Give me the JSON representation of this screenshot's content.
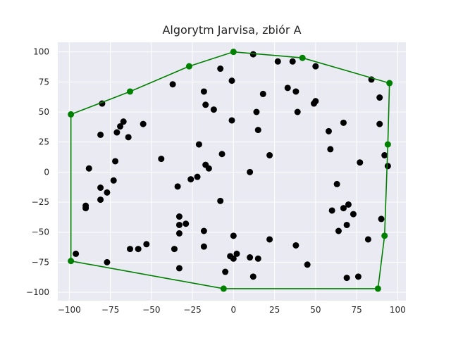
{
  "chart_data": {
    "type": "scatter",
    "title": "Algorytm Jarvisa, zbiór A",
    "xlabel": "",
    "ylabel": "",
    "xlim": [
      -107,
      105
    ],
    "ylim": [
      -107,
      108
    ],
    "x_ticks": [
      -100,
      -75,
      -50,
      -25,
      0,
      25,
      50,
      75,
      100
    ],
    "y_ticks": [
      -100,
      -75,
      -50,
      -25,
      0,
      25,
      50,
      75,
      100
    ],
    "x_tick_labels": [
      "−100",
      "−75",
      "−50",
      "−25",
      "0",
      "25",
      "50",
      "75",
      "100"
    ],
    "y_tick_labels": [
      "−100",
      "−75",
      "−50",
      "−25",
      "0",
      "25",
      "50",
      "75",
      "100"
    ],
    "grid": true,
    "background_color": "#eaeaf2",
    "point_color": "#000000",
    "hull_color": "#008000",
    "points": [
      [
        -96,
        -68
      ],
      [
        -90,
        -28
      ],
      [
        -90,
        -30
      ],
      [
        -88,
        3
      ],
      [
        -80,
        57
      ],
      [
        -81,
        31
      ],
      [
        -81,
        -13
      ],
      [
        -81,
        -23
      ],
      [
        -77,
        -75
      ],
      [
        -77,
        -17
      ],
      [
        -73,
        -7
      ],
      [
        -72,
        9
      ],
      [
        -71,
        33
      ],
      [
        -69,
        38
      ],
      [
        -67,
        42
      ],
      [
        -64,
        29
      ],
      [
        -55,
        40
      ],
      [
        -63,
        -64
      ],
      [
        -58,
        -64
      ],
      [
        -53,
        -60
      ],
      [
        -44,
        11
      ],
      [
        -37,
        73
      ],
      [
        -36,
        -64
      ],
      [
        -34,
        -12
      ],
      [
        -33,
        -37
      ],
      [
        -33,
        -44
      ],
      [
        -33,
        -51
      ],
      [
        -33,
        -80
      ],
      [
        -29,
        -43
      ],
      [
        -26,
        -6
      ],
      [
        -22,
        -4
      ],
      [
        -21,
        23
      ],
      [
        -18,
        67
      ],
      [
        -17,
        56
      ],
      [
        -17,
        6
      ],
      [
        -15,
        3
      ],
      [
        -12,
        52
      ],
      [
        -18,
        -49
      ],
      [
        -18,
        -62
      ],
      [
        -8,
        86
      ],
      [
        -7,
        15
      ],
      [
        -8,
        -24
      ],
      [
        -5,
        -83
      ],
      [
        -1,
        76
      ],
      [
        -1,
        43
      ],
      [
        -2,
        -70
      ],
      [
        0,
        -72
      ],
      [
        0,
        -53
      ],
      [
        2,
        -68
      ],
      [
        10,
        0
      ],
      [
        10,
        -71
      ],
      [
        12,
        98
      ],
      [
        12,
        -87
      ],
      [
        14,
        50
      ],
      [
        15,
        35
      ],
      [
        15,
        -72
      ],
      [
        18,
        65
      ],
      [
        22,
        14
      ],
      [
        22,
        -56
      ],
      [
        27,
        92
      ],
      [
        33,
        70
      ],
      [
        36,
        92
      ],
      [
        38,
        67
      ],
      [
        39,
        50
      ],
      [
        38,
        -61
      ],
      [
        45,
        -77
      ],
      [
        50,
        88
      ],
      [
        49,
        57
      ],
      [
        50,
        59
      ],
      [
        58,
        34
      ],
      [
        59,
        19
      ],
      [
        60,
        -32
      ],
      [
        63,
        -10
      ],
      [
        64,
        -49
      ],
      [
        67,
        41
      ],
      [
        67,
        -30
      ],
      [
        69,
        -44
      ],
      [
        69,
        -88
      ],
      [
        70,
        -27
      ],
      [
        73,
        -35
      ],
      [
        76,
        -87
      ],
      [
        77,
        8
      ],
      [
        82,
        -56
      ],
      [
        84,
        77
      ],
      [
        89,
        62
      ],
      [
        89,
        40
      ],
      [
        90,
        -39
      ],
      [
        92,
        14
      ],
      [
        94,
        5
      ]
    ],
    "hull": [
      [
        -99,
        48
      ],
      [
        -63,
        67
      ],
      [
        -27,
        88
      ],
      [
        0,
        100
      ],
      [
        42,
        95
      ],
      [
        95,
        74
      ],
      [
        94,
        23
      ],
      [
        92,
        -53
      ],
      [
        88,
        -97
      ],
      [
        -6,
        -97
      ],
      [
        -99,
        -74
      ],
      [
        -99,
        48
      ]
    ]
  }
}
